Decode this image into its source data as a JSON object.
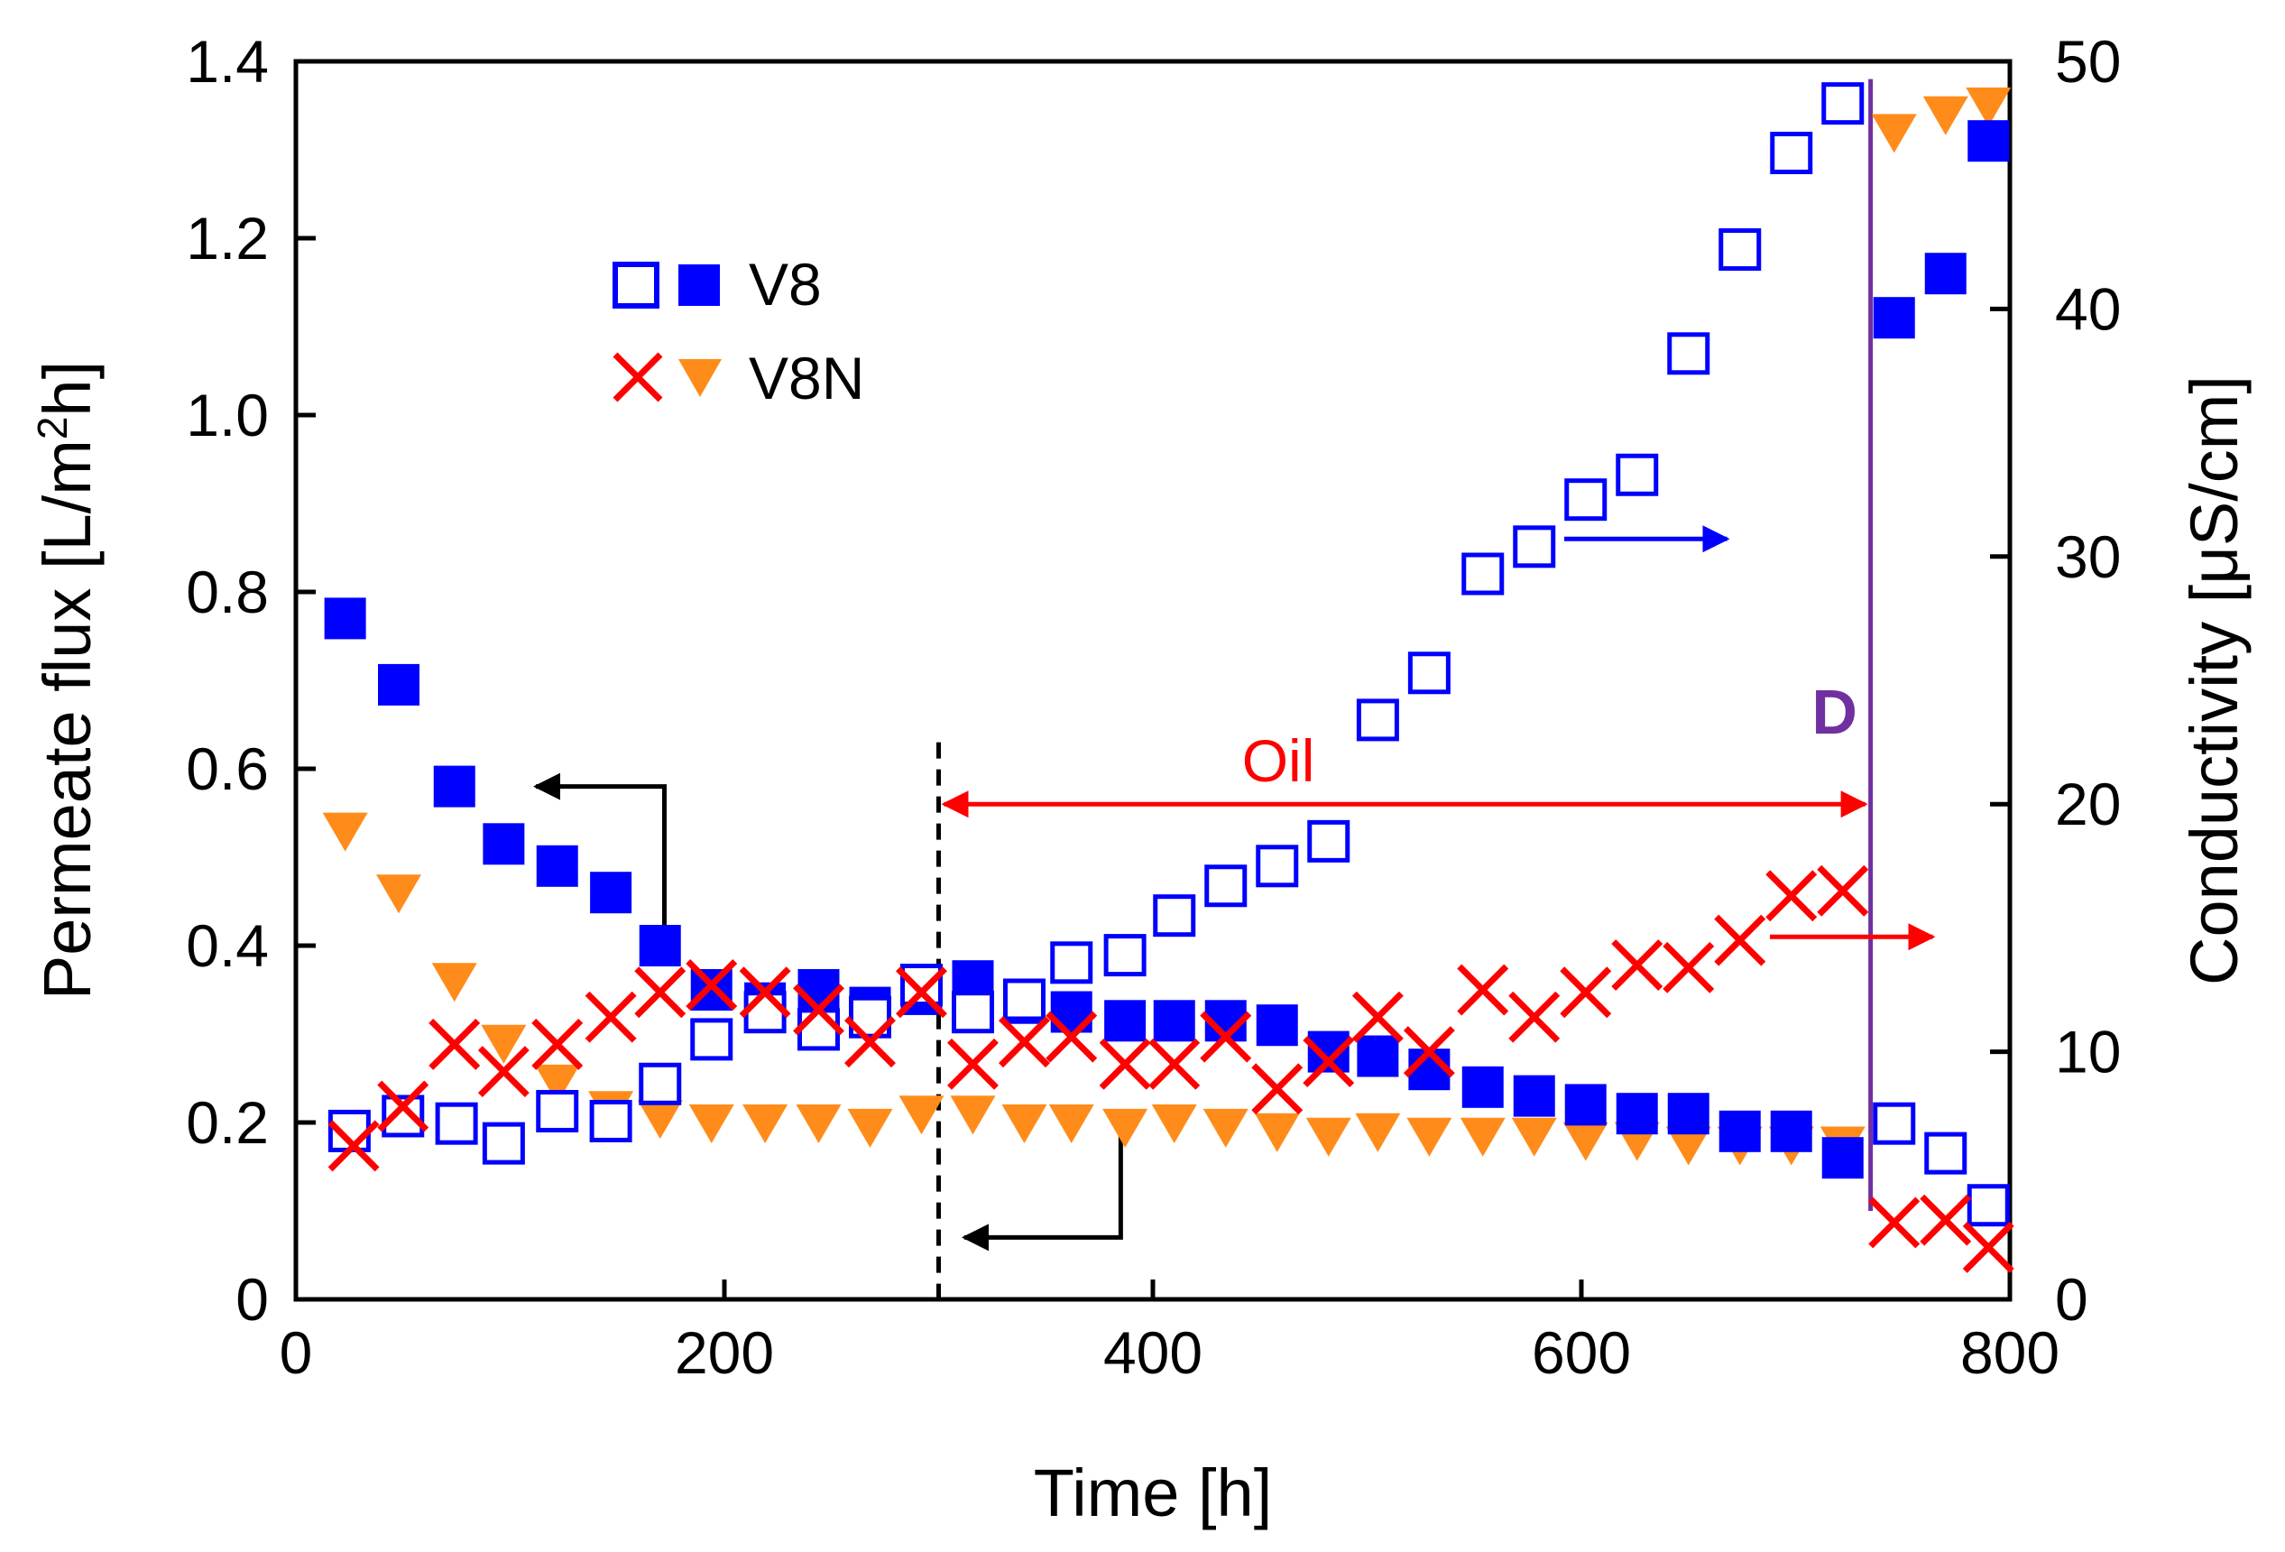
{
  "colors": {
    "blue": "#0000ff",
    "red": "#ff0000",
    "orange": "#ff8c1a",
    "purple": "#7030a0",
    "black": "#000000"
  },
  "chart_data": {
    "type": "scatter",
    "xlabel": "Time [h]",
    "ylabel_left": "Permeate flux [L/m",
    "ylabel_left_sup": "2",
    "ylabel_left_end": "h]",
    "ylabel_right": "Conductivity [μS/cm]",
    "xlim": [
      0,
      800
    ],
    "ylim_left": [
      0,
      1.4
    ],
    "ylim_right": [
      0,
      50
    ],
    "x_ticks": [
      0,
      200,
      400,
      600,
      800
    ],
    "x_tick_labels": [
      "0",
      "200",
      "400",
      "600",
      "800"
    ],
    "y_left_ticks": [
      0,
      0.2,
      0.4,
      0.6,
      0.8,
      1.0,
      1.2,
      1.4
    ],
    "y_left_tick_labels": [
      "0",
      "0.2",
      "0.4",
      "0.6",
      "0.8",
      "1.0",
      "1.2",
      "1.4"
    ],
    "y_right_ticks": [
      0,
      10,
      20,
      30,
      40,
      50
    ],
    "y_right_tick_labels": [
      "0",
      "10",
      "20",
      "30",
      "40",
      "50"
    ],
    "legend": [
      {
        "label": "V8",
        "markers": [
          "open-square-blue",
          "filled-square-blue"
        ]
      },
      {
        "label": "V8N",
        "markers": [
          "cross-red",
          "triangle-orange"
        ]
      }
    ],
    "series": [
      {
        "name": "V8 conductivity",
        "axis": "right",
        "marker": "open-square",
        "color": "blue",
        "x": [
          25,
          50,
          75,
          97,
          122,
          147,
          170,
          194,
          219,
          244,
          268,
          292,
          316,
          340,
          362,
          387,
          410,
          434,
          458,
          482,
          505,
          529,
          554,
          578,
          602,
          626,
          650,
          674,
          698,
          722,
          746,
          770,
          790
        ],
        "y": [
          6.8,
          7.4,
          7.1,
          6.3,
          7.6,
          7.2,
          8.7,
          10.5,
          11.6,
          10.9,
          11.4,
          12.7,
          11.6,
          12.1,
          13.6,
          13.9,
          15.5,
          16.7,
          17.5,
          18.5,
          23.4,
          25.3,
          29.3,
          30.4,
          32.3,
          33.3,
          38.2,
          42.4,
          46.3,
          48.3,
          7.1,
          5.9,
          3.8
        ]
      },
      {
        "name": "V8 permeate flux",
        "axis": "left",
        "marker": "filled-square",
        "color": "blue",
        "x": [
          23,
          48,
          74,
          97,
          122,
          147,
          170,
          194,
          219,
          244,
          268,
          292,
          316,
          340,
          362,
          387,
          410,
          434,
          458,
          482,
          505,
          529,
          554,
          578,
          602,
          626,
          650,
          674,
          698,
          722,
          746,
          770,
          790
        ],
        "y": [
          0.77,
          0.695,
          0.58,
          0.515,
          0.49,
          0.46,
          0.4,
          0.35,
          0.335,
          0.35,
          0.33,
          0.345,
          0.36,
          0.335,
          0.325,
          0.315,
          0.315,
          0.315,
          0.31,
          0.28,
          0.275,
          0.26,
          0.24,
          0.23,
          0.22,
          0.21,
          0.21,
          0.19,
          0.19,
          0.16,
          1.11,
          1.16,
          1.31
        ]
      },
      {
        "name": "V8N conductivity",
        "axis": "right",
        "marker": "cross",
        "color": "red",
        "x": [
          27,
          50,
          74,
          97,
          122,
          147,
          170,
          194,
          219,
          244,
          268,
          292,
          316,
          340,
          362,
          387,
          410,
          434,
          458,
          482,
          505,
          529,
          554,
          578,
          602,
          626,
          650,
          674,
          698,
          722,
          746,
          770,
          790
        ],
        "y": [
          6.2,
          7.8,
          10.3,
          9.2,
          10.3,
          11.4,
          12.4,
          12.7,
          12.4,
          11.7,
          10.4,
          12.4,
          9.5,
          10.4,
          10.6,
          9.5,
          9.5,
          10.6,
          8.5,
          9.6,
          11.4,
          10.0,
          12.5,
          11.4,
          12.4,
          13.5,
          13.4,
          14.5,
          16.3,
          16.5,
          3.1,
          3.2,
          2.1
        ]
      },
      {
        "name": "V8N permeate flux",
        "axis": "left",
        "marker": "triangle",
        "color": "orange",
        "x": [
          23,
          48,
          74,
          97,
          122,
          147,
          170,
          194,
          219,
          244,
          268,
          292,
          316,
          340,
          362,
          387,
          410,
          434,
          458,
          482,
          505,
          529,
          554,
          578,
          602,
          626,
          650,
          674,
          698,
          722,
          746,
          770,
          790
        ],
        "y": [
          0.53,
          0.46,
          0.36,
          0.29,
          0.245,
          0.215,
          0.205,
          0.2,
          0.2,
          0.2,
          0.195,
          0.21,
          0.21,
          0.2,
          0.2,
          0.195,
          0.2,
          0.195,
          0.19,
          0.185,
          0.19,
          0.185,
          0.185,
          0.185,
          0.18,
          0.18,
          0.175,
          0.175,
          0.175,
          0.175,
          1.32,
          1.34,
          1.35
        ]
      }
    ],
    "annotations": {
      "oil_label": "Oil",
      "oil_range": [
        300,
        735
      ],
      "oil_arrow_y": 0.56,
      "dashed_line_x": 300,
      "d_label": "D",
      "d_line_x": 735,
      "v8_flux_arrow": {
        "x_from": 172,
        "x_to": 112,
        "y_from": 0.4,
        "y_to": 0.58
      },
      "v8n_flux_arrow": {
        "x_from": 385,
        "x_to": 312,
        "y_from": 0.2,
        "y_to": 0.07
      },
      "v8_cond_arrow": {
        "x_from": 592,
        "x_to": 668,
        "y": 0.86
      },
      "v8n_cond_arrow": {
        "x_from": 688,
        "x_to": 764,
        "y": 0.41
      }
    }
  }
}
